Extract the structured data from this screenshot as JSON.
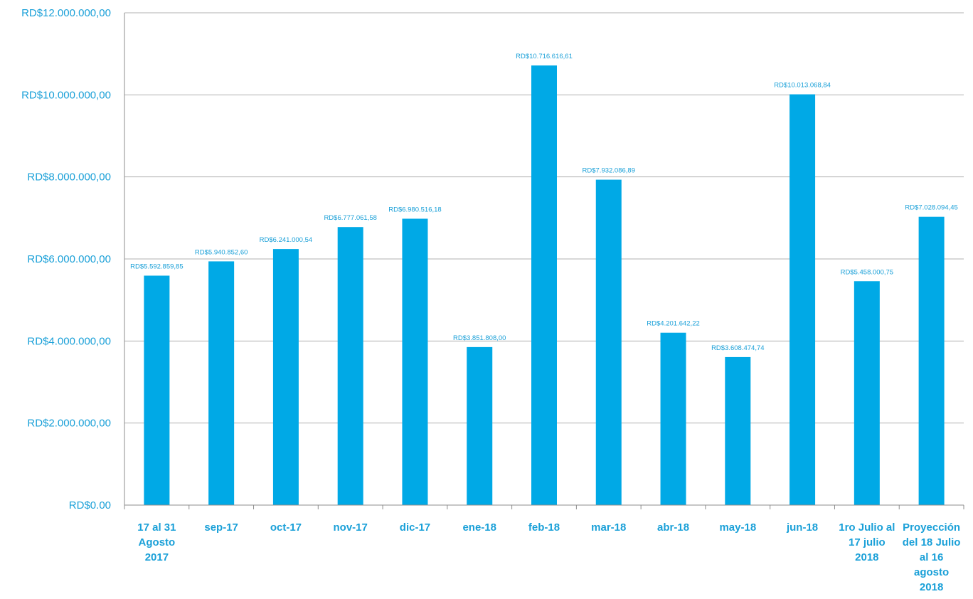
{
  "chart_data": {
    "type": "bar",
    "title": "",
    "xlabel": "",
    "ylabel": "",
    "ylim": [
      0,
      12000000
    ],
    "grid": true,
    "legend": "none",
    "yticks": [
      {
        "value": 0,
        "label": "RD$0.00"
      },
      {
        "value": 2000000,
        "label": "RD$2.000.000,00"
      },
      {
        "value": 4000000,
        "label": "RD$4.000.000,00"
      },
      {
        "value": 6000000,
        "label": "RD$6.000.000,00"
      },
      {
        "value": 8000000,
        "label": "RD$8.000.000,00"
      },
      {
        "value": 10000000,
        "label": "RD$10.000.000,00"
      },
      {
        "value": 12000000,
        "label": "RD$12.000.000,00"
      }
    ],
    "categories": [
      [
        "17 al 31",
        "Agosto",
        "2017"
      ],
      [
        "sep-17"
      ],
      [
        "oct-17"
      ],
      [
        "nov-17"
      ],
      [
        "dic-17"
      ],
      [
        "ene-18"
      ],
      [
        "feb-18"
      ],
      [
        "mar-18"
      ],
      [
        "abr-18"
      ],
      [
        "may-18"
      ],
      [
        "jun-18"
      ],
      [
        "1ro Julio al",
        "17 julio",
        "2018"
      ],
      [
        "Proyección",
        "del 18 Julio",
        "al 16",
        "agosto",
        "2018"
      ]
    ],
    "values": [
      5592859.85,
      5940852.6,
      6241000.54,
      6777061.58,
      6980516.18,
      3851808.0,
      10716616.61,
      7932086.89,
      4201642.22,
      3608474.74,
      10013068.84,
      5458000.75,
      7028094.45
    ],
    "data_labels": [
      "RD$5.592.859,85",
      "RD$5.940.852,60",
      "RD$6.241.000,54",
      "RD$6.777.061,58",
      "RD$6.980.516,18",
      "RD$3.851.808,00",
      "RD$10.716.616,61",
      "RD$7.932.086,89",
      "RD$4.201.642,22",
      "RD$3.608.474,74",
      "RD$10.013.068,84",
      "RD$5.458.000,75",
      "RD$7.028.094,45"
    ]
  },
  "colors": {
    "bar": "#00a9e6",
    "text": "#1aa0d8",
    "grid": "#b0b0b0",
    "axis": "#8c8c8c"
  }
}
